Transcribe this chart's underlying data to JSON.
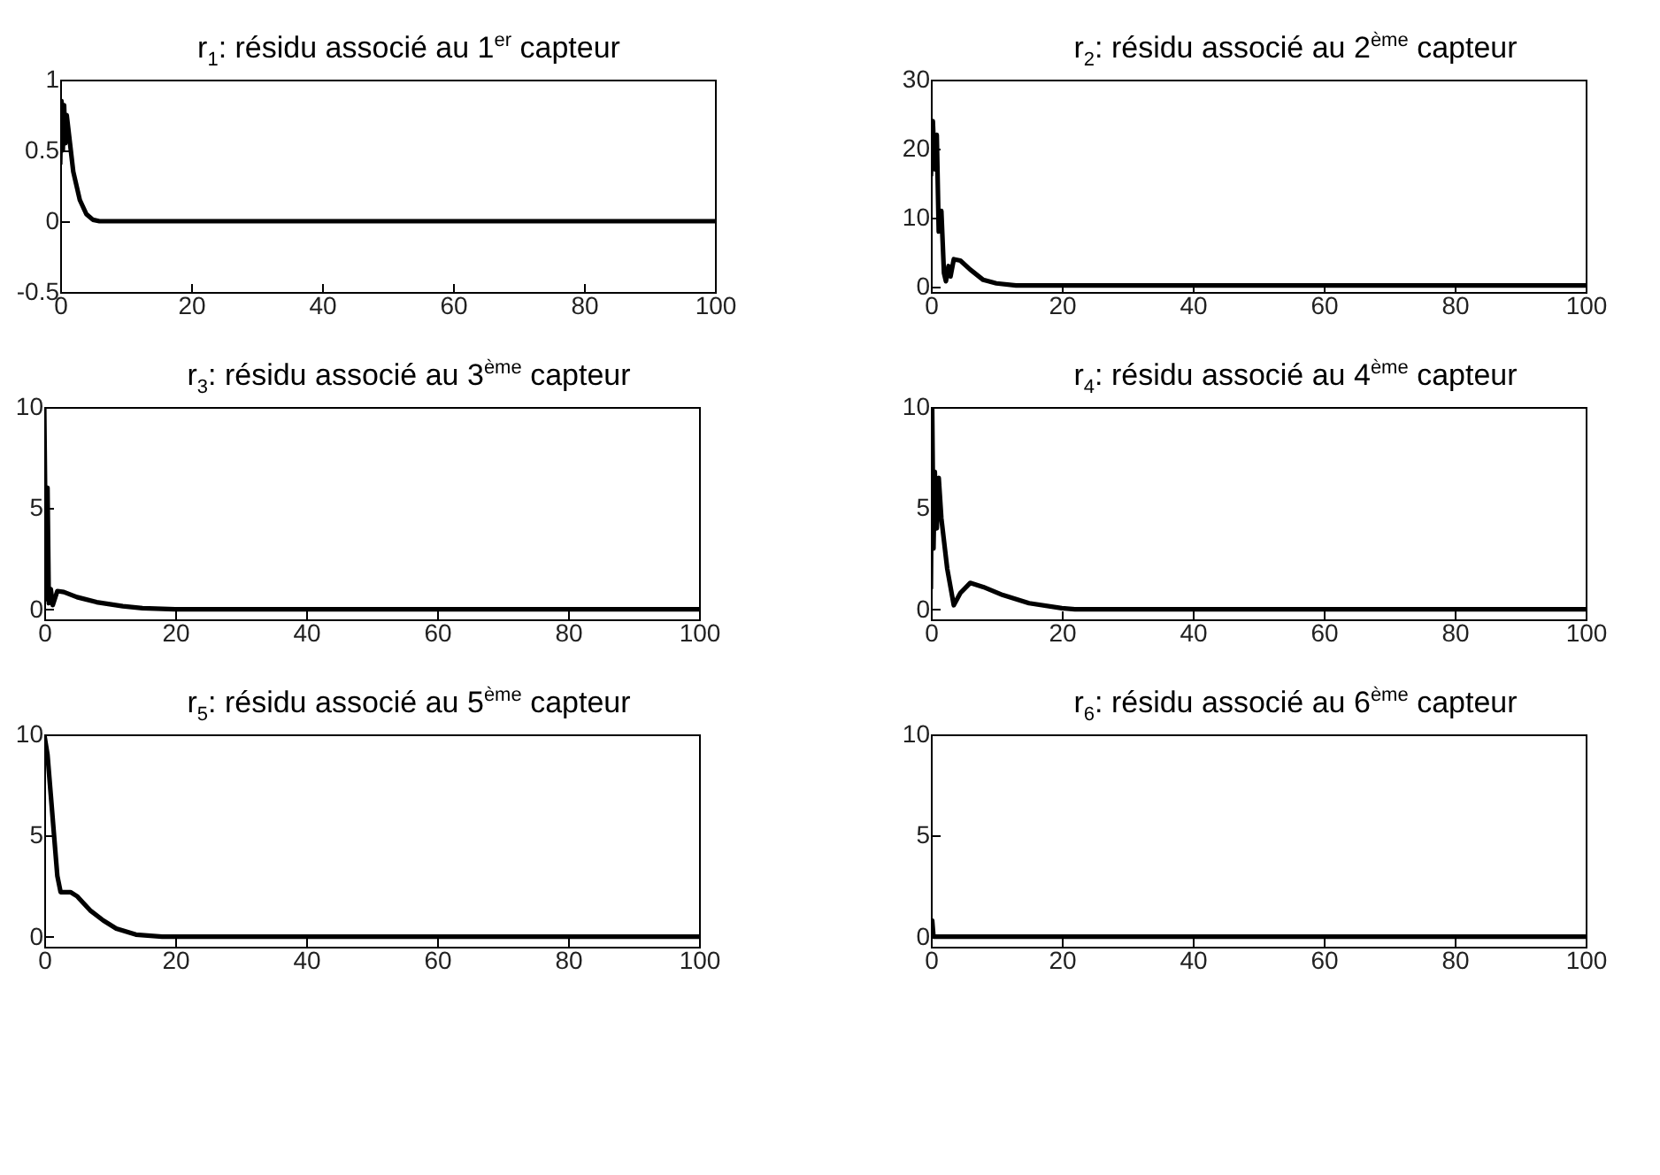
{
  "chart_data": [
    {
      "type": "line",
      "title": "r$_{1}$: résidu associé au 1$^{er}$ capteur",
      "x": [
        0,
        0.2,
        0.4,
        0.6,
        0.8,
        1,
        1.5,
        2,
        3,
        4,
        5,
        6,
        100
      ],
      "xlim": [
        0,
        100
      ],
      "xticks": [
        0,
        20,
        40,
        60,
        80,
        100
      ],
      "ylim": [
        -0.5,
        1
      ],
      "yticks": [
        -0.5,
        0,
        0.5,
        1
      ],
      "series": [
        {
          "color": "#000000",
          "values": [
            0.4,
            0.85,
            0.5,
            0.82,
            0.55,
            0.75,
            0.55,
            0.35,
            0.15,
            0.05,
            0.01,
            0,
            0
          ]
        }
      ]
    },
    {
      "type": "line",
      "title": "r$_{2}$: résidu associé au 2$^{ème}$ capteur",
      "x": [
        0,
        0.3,
        0.6,
        0.9,
        1.2,
        1.6,
        2,
        2.3,
        2.7,
        3,
        3.5,
        4.5,
        6,
        8,
        10,
        13,
        20,
        100
      ],
      "xlim": [
        0,
        100
      ],
      "xticks": [
        0,
        20,
        40,
        60,
        80,
        100
      ],
      "ylim": [
        -0.75,
        30
      ],
      "yticks": [
        0,
        10,
        20,
        30
      ],
      "series": [
        {
          "color": "#000000",
          "values": [
            16,
            24,
            17,
            22,
            8,
            11,
            2,
            0.8,
            3,
            1.5,
            4,
            3.8,
            2.5,
            1,
            0.5,
            0.2,
            0.2,
            0.2
          ]
        }
      ]
    },
    {
      "type": "line",
      "title": "r$_{3}$: résidu associé au 3$^{ème}$ capteur",
      "x": [
        0,
        0.3,
        0.5,
        0.7,
        1,
        1.3,
        2,
        3,
        5,
        8,
        12,
        15,
        20,
        100
      ],
      "xlim": [
        0,
        100
      ],
      "xticks": [
        0,
        20,
        40,
        60,
        80,
        100
      ],
      "ylim": [
        -0.5,
        10
      ],
      "yticks": [
        0,
        5,
        10
      ],
      "series": [
        {
          "color": "#000000",
          "values": [
            10,
            0.5,
            6,
            0.3,
            1,
            0.2,
            0.9,
            0.85,
            0.6,
            0.35,
            0.15,
            0.05,
            0,
            0
          ]
        }
      ]
    },
    {
      "type": "line",
      "title": "r$_{4}$: résidu associé au 4$^{ème}$ capteur",
      "x": [
        0,
        0.2,
        0.4,
        0.6,
        0.9,
        1.2,
        1.6,
        2.5,
        3.5,
        4.5,
        6,
        8,
        11,
        15,
        20,
        22,
        100
      ],
      "xlim": [
        0,
        100
      ],
      "xticks": [
        0,
        20,
        40,
        60,
        80,
        100
      ],
      "ylim": [
        -0.5,
        10
      ],
      "yticks": [
        0,
        5,
        10
      ],
      "series": [
        {
          "color": "#000000",
          "values": [
            1,
            10,
            3,
            6.8,
            4,
            6.5,
            4.5,
            2,
            0.2,
            0.8,
            1.3,
            1.1,
            0.7,
            0.3,
            0.05,
            0,
            0
          ]
        }
      ]
    },
    {
      "type": "line",
      "title": "r$_{5}$: résidu associé au 5$^{ème}$ capteur",
      "x": [
        0,
        0.5,
        1,
        2,
        2.5,
        4,
        5,
        7,
        9,
        11,
        14,
        18,
        100
      ],
      "xlim": [
        0,
        100
      ],
      "xticks": [
        0,
        20,
        40,
        60,
        80,
        100
      ],
      "ylim": [
        -0.5,
        10
      ],
      "yticks": [
        0,
        5,
        10
      ],
      "series": [
        {
          "color": "#000000",
          "values": [
            10,
            9,
            7,
            3,
            2.2,
            2.2,
            2,
            1.3,
            0.8,
            0.4,
            0.1,
            0,
            0
          ]
        }
      ]
    },
    {
      "type": "line",
      "title": "r$_{6}$: résidu associé au 6$^{ème}$ capteur",
      "x": [
        0,
        0.2,
        0.4,
        100
      ],
      "xlim": [
        0,
        100
      ],
      "xticks": [
        0,
        20,
        40,
        60,
        80,
        100
      ],
      "ylim": [
        -0.5,
        10
      ],
      "yticks": [
        0,
        5,
        10
      ],
      "series": [
        {
          "color": "#000000",
          "values": [
            0,
            0.8,
            0,
            0
          ]
        }
      ]
    }
  ]
}
